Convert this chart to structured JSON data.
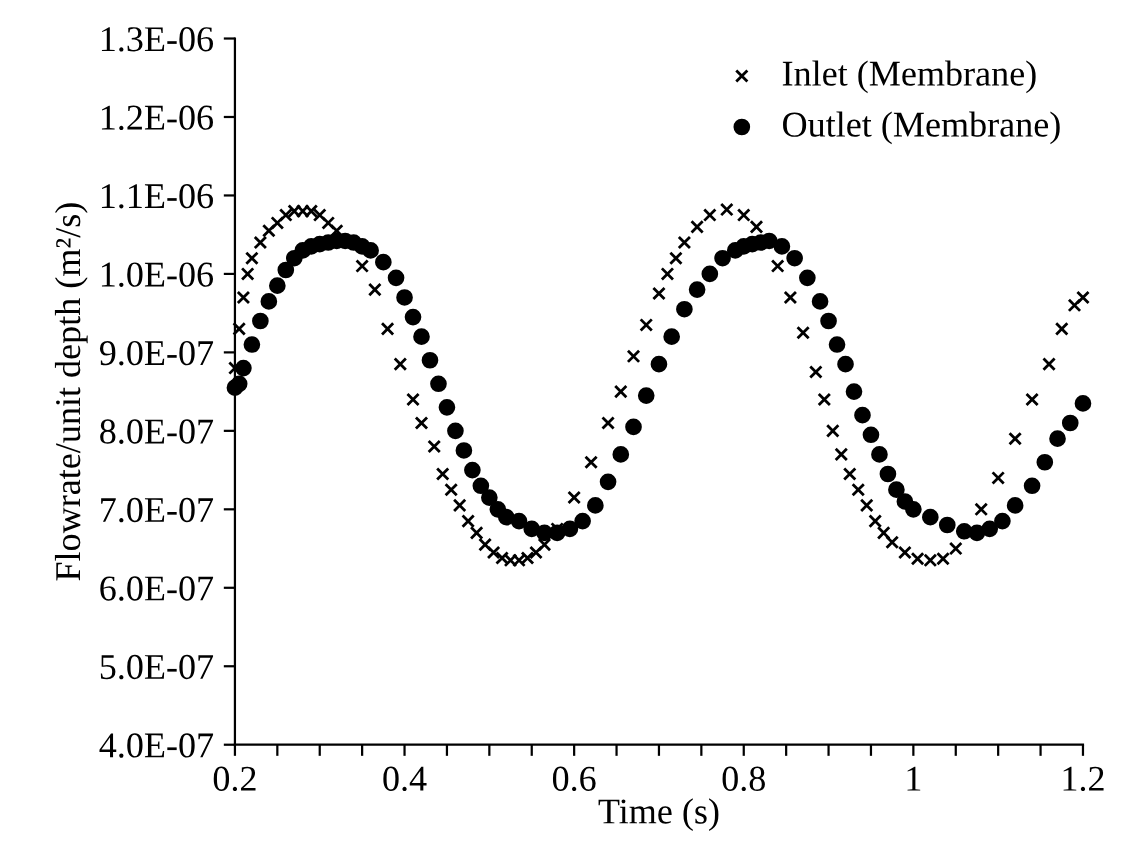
{
  "chart_data": {
    "type": "scatter",
    "xlabel": "Time (s)",
    "ylabel": "Flowrate/unit depth (m²/s)",
    "xlim": [
      0.2,
      1.2
    ],
    "ylim": [
      4e-07,
      1.3e-06
    ],
    "xticks": [
      0.2,
      {
        "value": 0.25,
        "label": null
      },
      0.4,
      {
        "value": 0.3,
        "label": null
      },
      {
        "value": 0.35,
        "label": null
      },
      {
        "value": 0.45,
        "label": null
      },
      {
        "value": 0.5,
        "label": null
      },
      {
        "value": 0.55,
        "label": null
      },
      0.6,
      {
        "value": 0.65,
        "label": null
      },
      {
        "value": 0.7,
        "label": null
      },
      {
        "value": 0.75,
        "label": null
      },
      0.8,
      {
        "value": 0.85,
        "label": null
      },
      {
        "value": 0.9,
        "label": null
      },
      {
        "value": 0.95,
        "label": null
      },
      1,
      {
        "value": 1.05,
        "label": null
      },
      {
        "value": 1.1,
        "label": null
      },
      {
        "value": 1.15,
        "label": null
      },
      1.2
    ],
    "yticks": [
      {
        "value": 4e-07,
        "label": "4.0E-07"
      },
      {
        "value": 5e-07,
        "label": "5.0E-07"
      },
      {
        "value": 6e-07,
        "label": "6.0E-07"
      },
      {
        "value": 7e-07,
        "label": "7.0E-07"
      },
      {
        "value": 8e-07,
        "label": "8.0E-07"
      },
      {
        "value": 9e-07,
        "label": "9.0E-07"
      },
      {
        "value": 1e-06,
        "label": "1.0E-06"
      },
      {
        "value": 1.1e-06,
        "label": "1.1E-06"
      },
      {
        "value": 1.2e-06,
        "label": "1.2E-06"
      },
      {
        "value": 1.3e-06,
        "label": "1.3E-06"
      }
    ],
    "grid": false,
    "legend": "top right",
    "series": [
      {
        "name": "Inlet (Membrane)",
        "color": "#000000",
        "marker": "cross",
        "x": [
          0.2,
          0.205,
          0.21,
          0.215,
          0.22,
          0.23,
          0.24,
          0.25,
          0.26,
          0.27,
          0.28,
          0.29,
          0.3,
          0.31,
          0.32,
          0.335,
          0.35,
          0.365,
          0.38,
          0.395,
          0.41,
          0.42,
          0.435,
          0.445,
          0.455,
          0.465,
          0.475,
          0.485,
          0.495,
          0.505,
          0.515,
          0.525,
          0.535,
          0.545,
          0.555,
          0.565,
          0.58,
          0.6,
          0.62,
          0.64,
          0.655,
          0.67,
          0.685,
          0.7,
          0.71,
          0.72,
          0.73,
          0.745,
          0.76,
          0.78,
          0.8,
          0.815,
          0.825,
          0.84,
          0.855,
          0.87,
          0.885,
          0.895,
          0.905,
          0.915,
          0.925,
          0.935,
          0.945,
          0.955,
          0.965,
          0.975,
          0.99,
          1.005,
          1.02,
          1.035,
          1.05,
          1.065,
          1.08,
          1.1,
          1.12,
          1.14,
          1.16,
          1.175,
          1.19,
          1.2
        ],
        "values": [
          8.8e-07,
          9.3e-07,
          9.7e-07,
          1e-06,
          1.02e-06,
          1.04e-06,
          1.055e-06,
          1.065e-06,
          1.075e-06,
          1.08e-06,
          1.08e-06,
          1.08e-06,
          1.075e-06,
          1.065e-06,
          1.055e-06,
          null,
          1.01e-06,
          9.8e-07,
          9.3e-07,
          8.85e-07,
          8.4e-07,
          8.1e-07,
          7.8e-07,
          7.45e-07,
          7.25e-07,
          7.05e-07,
          6.85e-07,
          6.7e-07,
          6.55e-07,
          6.45e-07,
          6.38e-07,
          6.35e-07,
          6.35e-07,
          6.38e-07,
          6.45e-07,
          6.55e-07,
          6.75e-07,
          7.15e-07,
          7.6e-07,
          8.1e-07,
          8.5e-07,
          8.95e-07,
          9.35e-07,
          9.75e-07,
          1e-06,
          1.02e-06,
          1.04e-06,
          1.06e-06,
          1.075e-06,
          1.082e-06,
          1.075e-06,
          1.06e-06,
          null,
          1.01e-06,
          9.7e-07,
          9.25e-07,
          8.75e-07,
          8.4e-07,
          8e-07,
          7.7e-07,
          7.45e-07,
          7.25e-07,
          7.05e-07,
          6.85e-07,
          6.7e-07,
          6.58e-07,
          6.45e-07,
          6.37e-07,
          6.35e-07,
          6.37e-07,
          6.5e-07,
          6.7e-07,
          7e-07,
          7.4e-07,
          7.9e-07,
          8.4e-07,
          8.85e-07,
          9.3e-07,
          9.6e-07,
          9.7e-07
        ]
      },
      {
        "name": "Outlet (Membrane)",
        "color": "#000000",
        "marker": "circle",
        "x": [
          0.2,
          0.205,
          0.21,
          0.22,
          0.23,
          0.24,
          0.25,
          0.26,
          0.27,
          0.28,
          0.29,
          0.3,
          0.31,
          0.32,
          0.33,
          0.34,
          0.35,
          0.36,
          0.375,
          0.39,
          0.4,
          0.41,
          0.42,
          0.43,
          0.44,
          0.45,
          0.46,
          0.47,
          0.48,
          0.49,
          0.5,
          0.51,
          0.52,
          0.535,
          0.55,
          0.565,
          0.58,
          0.595,
          0.61,
          0.625,
          0.64,
          0.655,
          0.67,
          0.685,
          0.7,
          0.715,
          0.73,
          0.745,
          0.76,
          0.775,
          0.79,
          0.8,
          0.81,
          0.82,
          0.83,
          0.845,
          0.86,
          0.875,
          0.89,
          0.9,
          0.91,
          0.92,
          0.93,
          0.94,
          0.95,
          0.96,
          0.97,
          0.98,
          0.99,
          1.0,
          1.02,
          1.04,
          1.06,
          1.075,
          1.09,
          1.105,
          1.12,
          1.14,
          1.155,
          1.17,
          1.185,
          1.2
        ],
        "values": [
          8.55e-07,
          8.6e-07,
          8.8e-07,
          9.1e-07,
          9.4e-07,
          9.65e-07,
          9.85e-07,
          1.005e-06,
          1.02e-06,
          1.03e-06,
          1.035e-06,
          1.038e-06,
          1.04e-06,
          1.042e-06,
          1.042e-06,
          1.04e-06,
          1.035e-06,
          1.03e-06,
          1.015e-06,
          9.95e-07,
          9.7e-07,
          9.45e-07,
          9.2e-07,
          8.9e-07,
          8.6e-07,
          8.3e-07,
          8e-07,
          7.75e-07,
          7.5e-07,
          7.3e-07,
          7.15e-07,
          7e-07,
          6.9e-07,
          6.85e-07,
          6.75e-07,
          6.7e-07,
          6.7e-07,
          6.75e-07,
          6.85e-07,
          7.05e-07,
          7.35e-07,
          7.7e-07,
          8.05e-07,
          8.45e-07,
          8.85e-07,
          9.2e-07,
          9.55e-07,
          9.8e-07,
          1e-06,
          1.02e-06,
          1.03e-06,
          1.035e-06,
          1.038e-06,
          1.04e-06,
          1.042e-06,
          1.035e-06,
          1.02e-06,
          9.95e-07,
          9.65e-07,
          9.4e-07,
          9.1e-07,
          8.85e-07,
          8.5e-07,
          8.2e-07,
          7.95e-07,
          7.7e-07,
          7.45e-07,
          7.25e-07,
          7.1e-07,
          7e-07,
          6.9e-07,
          6.8e-07,
          6.72e-07,
          6.7e-07,
          6.75e-07,
          6.85e-07,
          7.05e-07,
          7.3e-07,
          7.6e-07,
          7.9e-07,
          8.1e-07,
          8.35e-07
        ]
      }
    ]
  }
}
